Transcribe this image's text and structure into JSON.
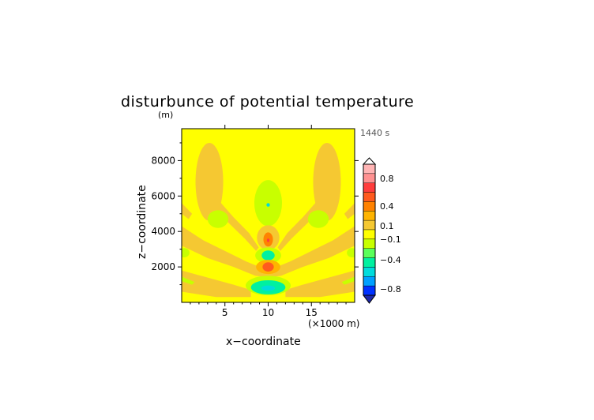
{
  "chart_data": {
    "type": "heatmap",
    "title": "disturbunce of potential temperature",
    "y_unit": "(m)",
    "time_label": "1440 s",
    "xlabel": "x−coordinate",
    "ylabel": "z−coordinate",
    "x_unit": "(×1000 m)",
    "xlim": [
      0,
      20
    ],
    "ylim": [
      0,
      9800
    ],
    "xticks": [
      5,
      10,
      15
    ],
    "xtick_labels": [
      "5",
      "10",
      "15"
    ],
    "yticks": [
      2000,
      4000,
      6000,
      8000
    ],
    "ytick_labels": [
      "2000",
      "4000",
      "6000",
      "8000"
    ],
    "background_level": "-0.1 to 0.1",
    "colorbar": {
      "levels": [
        {
          "range": "0.8 to 1",
          "color": "#ffb4b4"
        },
        {
          "range": "0.6 to 0.8",
          "color": "#ff9191"
        },
        {
          "range": "0.4 to 0.6",
          "color": "#ff3c3c"
        },
        {
          "range": "0.3 to 0.4",
          "color": "#ff5a1e"
        },
        {
          "range": "0.2 to 0.3",
          "color": "#ff8200"
        },
        {
          "range": "0.1 to 0.2",
          "color": "#ffb400"
        },
        {
          "range": "0 to 0.1",
          "color": "#f5c832"
        },
        {
          "range": "-0.1 to 0",
          "color": "#ffff00"
        },
        {
          "range": "-0.2 to -0.1",
          "color": "#c8ff00"
        },
        {
          "range": "-0.3 to -0.2",
          "color": "#5aff5a"
        },
        {
          "range": "-0.4 to -0.3",
          "color": "#00f0a0"
        },
        {
          "range": "-0.6 to -0.4",
          "color": "#00dcdc"
        },
        {
          "range": "-0.8 to -0.6",
          "color": "#00a0ff"
        },
        {
          "range": "-1 to -0.8",
          "color": "#0032ff"
        }
      ],
      "tick_labels": [
        "0.8",
        "0.4",
        "0.1",
        "−0.1",
        "−0.4",
        "−0.8"
      ],
      "low_extend_color": "#1e28aa"
    },
    "features": [
      {
        "x": 3.2,
        "z": 6800,
        "rx": 1.6,
        "rz": 2200,
        "color": "#f5c832"
      },
      {
        "x": 16.8,
        "z": 6800,
        "rx": 1.6,
        "rz": 2200,
        "color": "#f5c832"
      },
      {
        "x": 10,
        "z": 5600,
        "rx": 1.6,
        "rz": 1300,
        "color": "#c8ff00"
      },
      {
        "x": 10,
        "z": 5500,
        "rx": 0.2,
        "rz": 100,
        "color": "#00dcdc"
      },
      {
        "x": 4.2,
        "z": 4700,
        "rx": 1.2,
        "rz": 500,
        "color": "#c8ff00"
      },
      {
        "x": 15.8,
        "z": 4700,
        "rx": 1.2,
        "rz": 500,
        "color": "#c8ff00"
      },
      {
        "x": 10,
        "z": 3650,
        "rx": 1.3,
        "rz": 700,
        "color": "#f5c832"
      },
      {
        "x": 10,
        "z": 3550,
        "rx": 0.55,
        "rz": 400,
        "color": "#ff8200"
      },
      {
        "x": 10,
        "z": 3500,
        "rx": 0.15,
        "rz": 100,
        "color": "#ff3c3c"
      },
      {
        "x": 10,
        "z": 2650,
        "rx": 1.5,
        "rz": 450,
        "color": "#c8ff00"
      },
      {
        "x": 10,
        "z": 2650,
        "rx": 0.75,
        "rz": 280,
        "color": "#00f0a0"
      },
      {
        "x": 10,
        "z": 2000,
        "rx": 1.4,
        "rz": 400,
        "color": "#ffb400"
      },
      {
        "x": 10,
        "z": 2000,
        "rx": 0.65,
        "rz": 260,
        "color": "#ff5a1e"
      },
      {
        "x": 10,
        "z": 950,
        "rx": 2.6,
        "rz": 550,
        "color": "#c8ff00"
      },
      {
        "x": 10,
        "z": 850,
        "rx": 2.0,
        "rz": 400,
        "color": "#00f0a0"
      },
      {
        "x": 10,
        "z": 800,
        "rx": 0.8,
        "rz": 150,
        "color": "#00dcdc"
      },
      {
        "x": 0.3,
        "z": 2800,
        "rx": 0.6,
        "rz": 260,
        "color": "#c8ff00"
      },
      {
        "x": 19.7,
        "z": 2800,
        "rx": 0.6,
        "rz": 260,
        "color": "#c8ff00"
      }
    ],
    "bands": [
      {
        "points": [
          [
            0,
            4300
          ],
          [
            2.5,
            3500
          ],
          [
            5,
            2900
          ],
          [
            7.5,
            2300
          ],
          [
            9.5,
            1900
          ],
          [
            10,
            1850
          ],
          [
            10.5,
            1900
          ],
          [
            12.5,
            2300
          ],
          [
            15,
            2900
          ],
          [
            17.5,
            3500
          ],
          [
            20,
            4300
          ],
          [
            20,
            3200
          ],
          [
            17,
            2500
          ],
          [
            14,
            2000
          ],
          [
            11.5,
            1500
          ],
          [
            10,
            1400
          ],
          [
            8.5,
            1500
          ],
          [
            6,
            2000
          ],
          [
            3,
            2500
          ],
          [
            0,
            3200
          ]
        ],
        "color": "#f5c832"
      },
      {
        "points": [
          [
            4.2,
            5800
          ],
          [
            6,
            4800
          ],
          [
            7.8,
            3900
          ],
          [
            8.9,
            3100
          ],
          [
            8.6,
            2900
          ],
          [
            7.3,
            3600
          ],
          [
            5.4,
            4500
          ],
          [
            3.7,
            5400
          ]
        ],
        "color": "#f5c832"
      },
      {
        "points": [
          [
            15.8,
            5800
          ],
          [
            14,
            4800
          ],
          [
            12.2,
            3900
          ],
          [
            11.1,
            3100
          ],
          [
            11.4,
            2900
          ],
          [
            12.7,
            3600
          ],
          [
            14.6,
            4500
          ],
          [
            16.3,
            5400
          ]
        ],
        "color": "#f5c832"
      },
      {
        "points": [
          [
            0,
            5600
          ],
          [
            1.2,
            5000
          ],
          [
            0.8,
            4700
          ],
          [
            0,
            5000
          ]
        ],
        "color": "#f5c832"
      },
      {
        "points": [
          [
            20,
            5600
          ],
          [
            18.8,
            5000
          ],
          [
            19.2,
            4700
          ],
          [
            20,
            5000
          ]
        ],
        "color": "#f5c832"
      },
      {
        "points": [
          [
            0,
            1800
          ],
          [
            3,
            1400
          ],
          [
            6,
            1000
          ],
          [
            8,
            700
          ],
          [
            8,
            300
          ],
          [
            4,
            300
          ],
          [
            0,
            600
          ]
        ],
        "color": "#f5c832"
      },
      {
        "points": [
          [
            20,
            1800
          ],
          [
            17,
            1400
          ],
          [
            14,
            1000
          ],
          [
            12,
            700
          ],
          [
            12,
            300
          ],
          [
            16,
            300
          ],
          [
            20,
            600
          ]
        ],
        "color": "#f5c832"
      },
      {
        "points": [
          [
            0,
            1450
          ],
          [
            1.5,
            1150
          ],
          [
            1.2,
            1000
          ],
          [
            0,
            1200
          ]
        ],
        "color": "#c8ff00"
      },
      {
        "points": [
          [
            20,
            1450
          ],
          [
            18.5,
            1150
          ],
          [
            18.8,
            1000
          ],
          [
            20,
            1200
          ]
        ],
        "color": "#c8ff00"
      }
    ]
  }
}
